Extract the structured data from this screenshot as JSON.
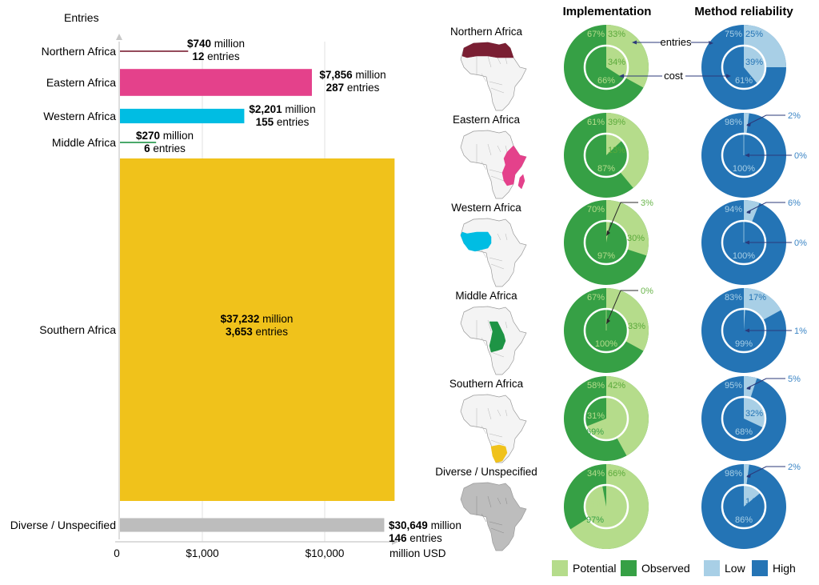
{
  "colors": {
    "northern": "#7a1f33",
    "eastern": "#e4418b",
    "western": "#00bde3",
    "middle": "#1e9445",
    "southern": "#f0c21b",
    "diverse": "#bdbdbd",
    "potential": "#b5dc8b",
    "observed": "#36a045",
    "low": "#a8cfe6",
    "high": "#2474b5",
    "grid": "#e2e2e2",
    "axis": "#c8c8c8",
    "annot_arrow": "#2b3a7a",
    "green_text": "#69b54a",
    "blue_text": "#3c86c6"
  },
  "chart_data": [
    {
      "type": "bar",
      "orientation": "horizontal",
      "title": "",
      "ylabel": "Entries",
      "xlabel": "million USD",
      "xscale": "log-like",
      "xticks": [
        "0",
        "$1,000",
        "$10,000"
      ],
      "categories": [
        "Northern Africa",
        "Eastern Africa",
        "Western Africa",
        "Middle Africa",
        "Southern Africa",
        "Diverse / Unspecified"
      ],
      "values_million_usd": [
        740,
        7856,
        2201,
        270,
        37232,
        30649
      ],
      "entries": [
        12,
        287,
        155,
        6,
        3653,
        146
      ],
      "value_labels": [
        "$740",
        "$7,856",
        "$2,201",
        "$270",
        "$37,232",
        "$30,649"
      ],
      "entry_labels": [
        "12",
        "287",
        "155",
        "6",
        "3,653",
        "146"
      ],
      "unit_million": "million",
      "unit_entries": "entries",
      "note": "bar thickness proportional to number of entries"
    },
    {
      "type": "pie",
      "title": "Implementation",
      "series": [
        "Potential",
        "Observed"
      ],
      "rings": {
        "outer": "entries",
        "inner": "cost"
      },
      "regions": [
        {
          "name": "Northern Africa",
          "outer": {
            "Potential": 33,
            "Observed": 67
          },
          "inner": {
            "Potential": 34,
            "Observed": 66
          }
        },
        {
          "name": "Eastern Africa",
          "outer": {
            "Potential": 39,
            "Observed": 61
          },
          "inner": {
            "Potential": 13,
            "Observed": 87
          }
        },
        {
          "name": "Western Africa",
          "outer": {
            "Potential": 30,
            "Observed": 70
          },
          "inner": {
            "Potential": 3,
            "Observed": 97
          }
        },
        {
          "name": "Middle Africa",
          "outer": {
            "Potential": 33,
            "Observed": 67
          },
          "inner": {
            "Potential": 0,
            "Observed": 100
          }
        },
        {
          "name": "Southern Africa",
          "outer": {
            "Potential": 42,
            "Observed": 58
          },
          "inner": {
            "Potential": 69,
            "Observed": 31
          }
        },
        {
          "name": "Diverse / Unspecified",
          "outer": {
            "Potential": 66,
            "Observed": 34
          },
          "inner": {
            "Potential": 97,
            "Observed": 3
          }
        }
      ]
    },
    {
      "type": "pie",
      "title": "Method reliability",
      "series": [
        "Low",
        "High"
      ],
      "rings": {
        "outer": "entries",
        "inner": "cost"
      },
      "regions": [
        {
          "name": "Northern Africa",
          "outer": {
            "Low": 25,
            "High": 75
          },
          "inner": {
            "Low": 39,
            "High": 61
          }
        },
        {
          "name": "Eastern Africa",
          "outer": {
            "Low": 2,
            "High": 98
          },
          "inner": {
            "Low": 0,
            "High": 100
          }
        },
        {
          "name": "Western Africa",
          "outer": {
            "Low": 6,
            "High": 94
          },
          "inner": {
            "Low": 0,
            "High": 100
          }
        },
        {
          "name": "Middle Africa",
          "outer": {
            "Low": 17,
            "High": 83
          },
          "inner": {
            "Low": 1,
            "High": 99
          }
        },
        {
          "name": "Southern Africa",
          "outer": {
            "Low": 5,
            "High": 95
          },
          "inner": {
            "Low": 32,
            "High": 68
          }
        },
        {
          "name": "Diverse / Unspecified",
          "outer": {
            "Low": 2,
            "High": 98
          },
          "inner": {
            "Low": 14,
            "High": 86
          }
        }
      ]
    }
  ],
  "annotations": {
    "entries": "entries",
    "cost": "cost"
  },
  "legend": [
    {
      "key": "potential",
      "label": "Potential"
    },
    {
      "key": "observed",
      "label": "Observed"
    },
    {
      "key": "low",
      "label": "Low"
    },
    {
      "key": "high",
      "label": "High"
    }
  ],
  "map_regions": [
    "Northern Africa",
    "Eastern Africa",
    "Western Africa",
    "Middle Africa",
    "Southern Africa",
    "Diverse / Unspecified"
  ]
}
